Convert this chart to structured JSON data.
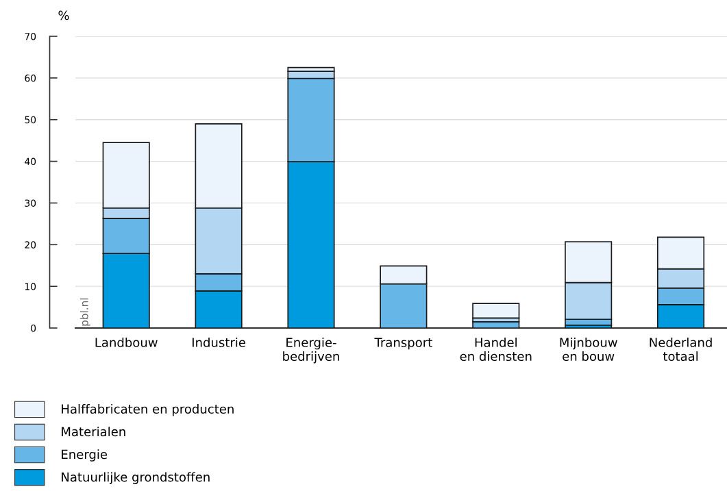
{
  "chart_data": {
    "type": "bar",
    "stacked": true,
    "ylabel": "%",
    "categories": [
      "Landbouw",
      "Industrie",
      "Energie-\nbedrijven",
      "Transport",
      "Handel\nen diensten",
      "Mijnbouw\nen bouw",
      "Nederland\ntotaal"
    ],
    "series": [
      {
        "name": "Natuurlijke grondstoffen",
        "color": "#009bde",
        "values": [
          17.9,
          8.9,
          39.9,
          null,
          null,
          0.7,
          5.6
        ]
      },
      {
        "name": "Energie",
        "color": "#67b6e8",
        "values": [
          8.4,
          4.1,
          20.0,
          10.6,
          1.5,
          1.4,
          4.0
        ]
      },
      {
        "name": "Materialen",
        "color": "#b3d7f3",
        "values": [
          2.5,
          15.8,
          1.7,
          null,
          0.9,
          8.8,
          4.6
        ]
      },
      {
        "name": "Halffabricaten en producten",
        "color": "#ebf4fd",
        "values": [
          15.7,
          20.2,
          0.9,
          4.3,
          3.5,
          9.8,
          7.6
        ]
      }
    ],
    "ylim": [
      0,
      70
    ],
    "yticks": [
      0,
      10,
      20,
      30,
      40,
      50,
      60,
      70
    ],
    "grid": "y",
    "legend": "bottom",
    "annotations": [
      "pbl.nl"
    ]
  }
}
